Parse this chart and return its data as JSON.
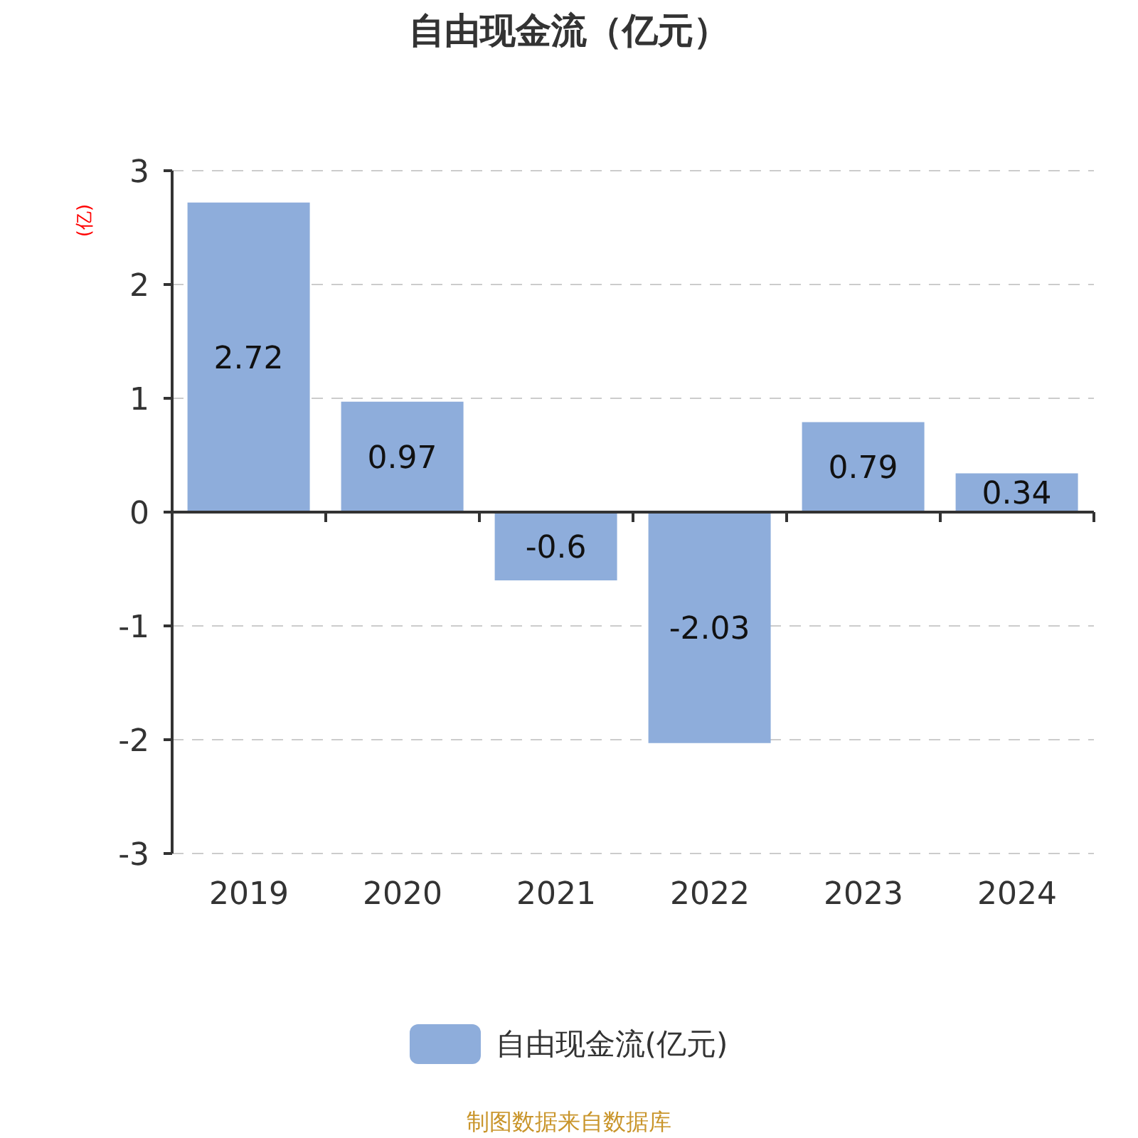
{
  "chart_data": {
    "type": "bar",
    "title": "自由现金流（亿元）",
    "ylabel": "(亿)",
    "categories": [
      "2019",
      "2020",
      "2021",
      "2022",
      "2023",
      "2024"
    ],
    "series": [
      {
        "name": "自由现金流(亿元)",
        "color": "#8eaddb",
        "values": [
          2.72,
          0.97,
          -0.6,
          -2.03,
          0.79,
          0.34
        ]
      }
    ],
    "ylim": [
      -3,
      3
    ],
    "yticks": [
      -3,
      -2,
      -1,
      0,
      1,
      2,
      3
    ],
    "grid": "y",
    "legend": "bottom",
    "data_labels": true,
    "annotations": [
      "制图数据来自数据库"
    ]
  }
}
